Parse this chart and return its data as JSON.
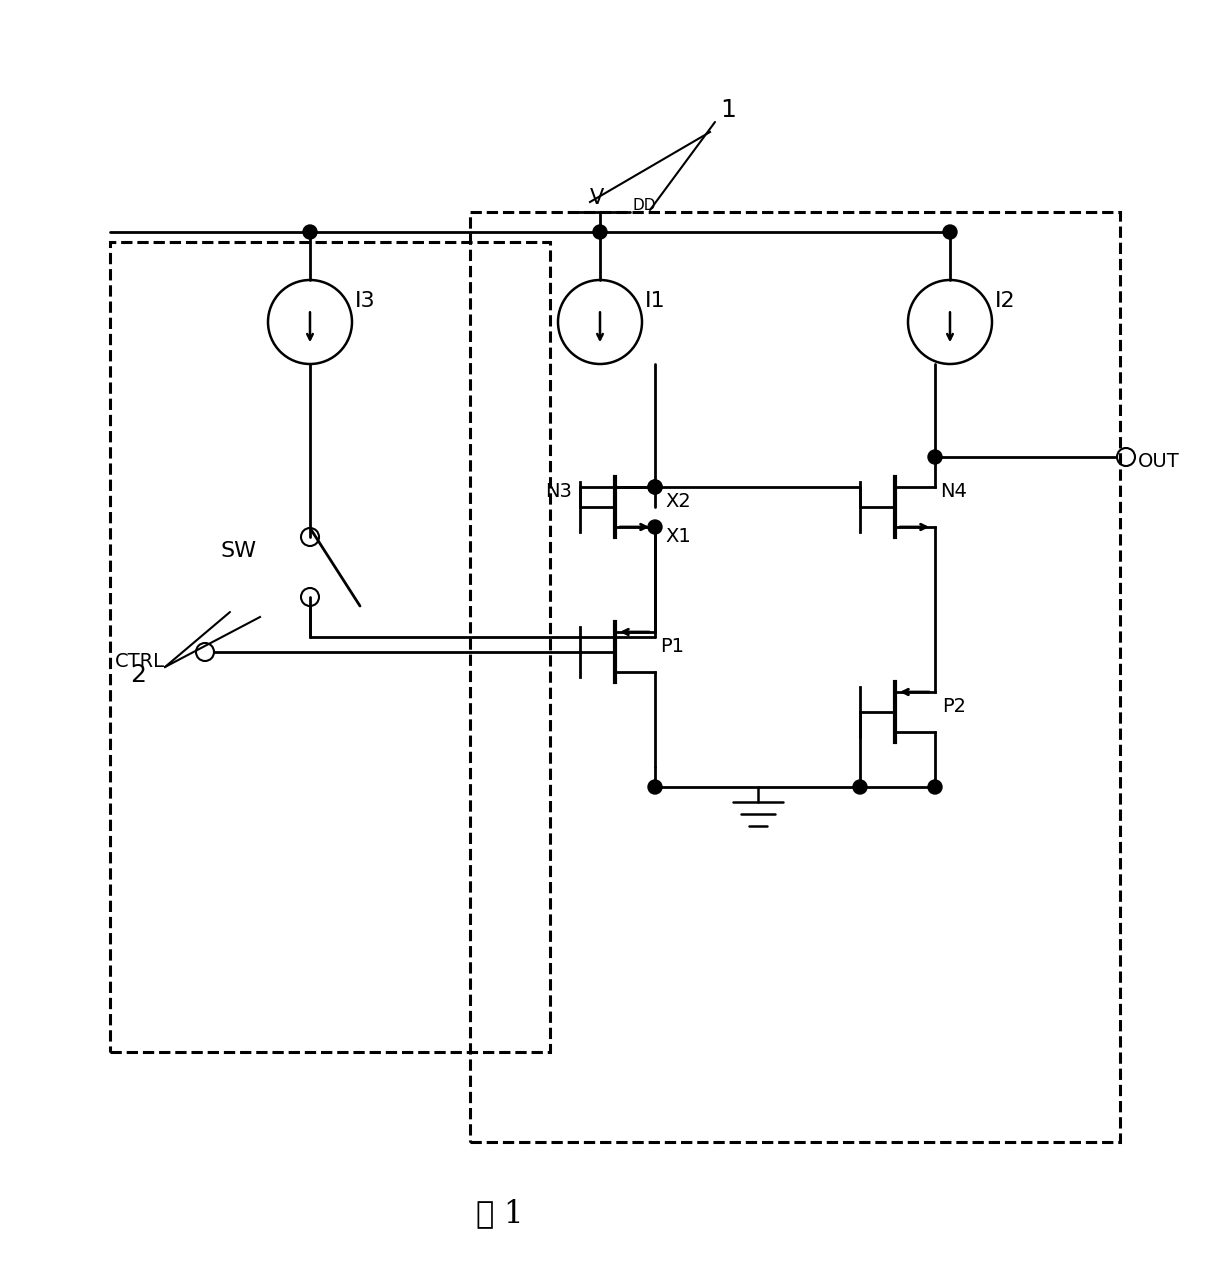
{
  "bg_color": "#ffffff",
  "line_color": "#000000",
  "dashed_color": "#000000",
  "title": "图 1",
  "label_1": "1",
  "label_2": "2",
  "label_VDD": "V",
  "label_VDD_sub": "DD",
  "label_I1": "I1",
  "label_I2": "I2",
  "label_I3": "I3",
  "label_N3": "N3",
  "label_N4": "N4",
  "label_P1": "P1",
  "label_P2": "P2",
  "label_X1": "X1",
  "label_X2": "X2",
  "label_SW": "SW",
  "label_CTRL": "CTRL",
  "label_OUT": "OUT",
  "figsize": [
    12.28,
    12.72
  ],
  "dpi": 100
}
